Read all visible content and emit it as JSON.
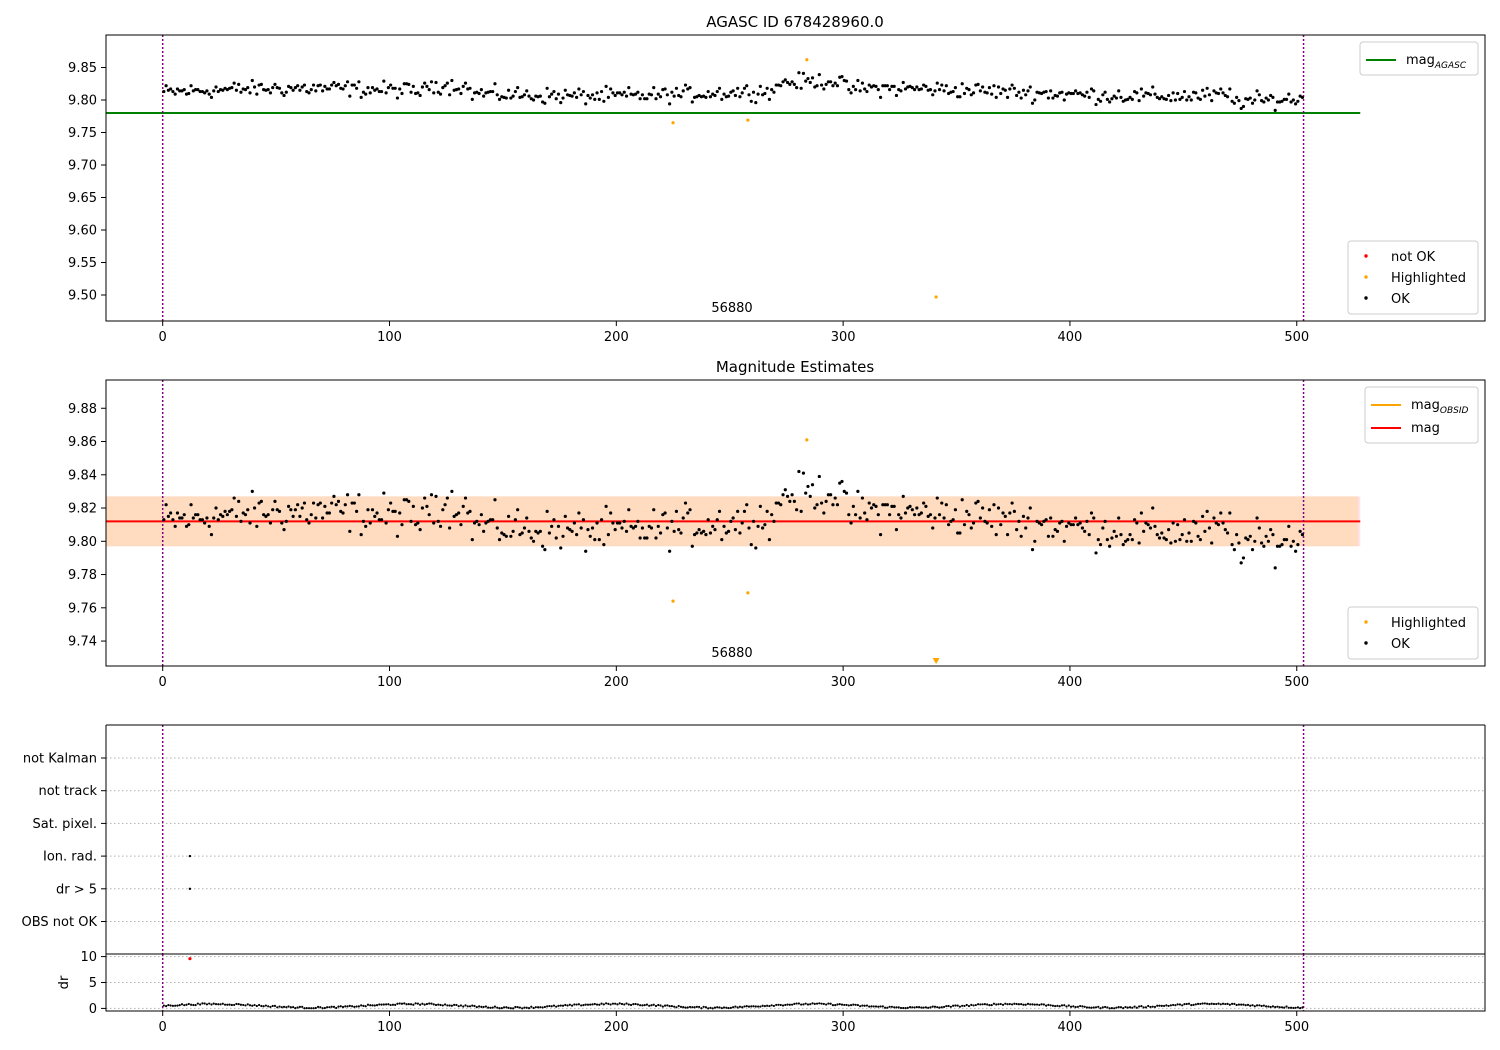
{
  "figure": {
    "top_title": "AGASC ID 678428960.0",
    "middle_title": "Magnitude Estimates"
  },
  "colors": {
    "ok": "#000000",
    "highlighted": "#ffa500",
    "not_ok": "#ff0000",
    "mag_agasc": "#008000",
    "mag_obsid": "#ffa500",
    "mag": "#ff0000",
    "band_outer": "#ffc0cb",
    "band_inner": "#ffdab9",
    "vline": "#800080",
    "grid": "#b0b0b0"
  },
  "chart_data": [
    {
      "type": "scatter",
      "title": "AGASC ID 678428960.0",
      "xlim": [
        -25,
        583
      ],
      "ylim": [
        9.46,
        9.9
      ],
      "xticks": [
        "0",
        "100",
        "200",
        "300",
        "400",
        "500"
      ],
      "yticks": [
        "9.50",
        "9.55",
        "9.60",
        "9.65",
        "9.70",
        "9.75",
        "9.80",
        "9.85"
      ],
      "hline": {
        "name": "mag_AGASC",
        "y": 9.78,
        "x": [
          -25,
          528
        ]
      },
      "vlines": [
        0,
        503
      ],
      "obsid_label": {
        "text": "56880",
        "x": 251
      },
      "legend_lines": [
        {
          "label": "mag",
          "sub": "AGASC",
          "color": "#008000"
        }
      ],
      "legend_points": [
        {
          "label": "not OK",
          "color": "#ff0000"
        },
        {
          "label": "Highlighted",
          "color": "#ffa500"
        },
        {
          "label": "OK",
          "color": "#000000"
        }
      ],
      "series": [
        {
          "name": "not OK",
          "x": [],
          "y": []
        },
        {
          "name": "Highlighted",
          "x": [
            225,
            258,
            284,
            341
          ],
          "y": [
            9.765,
            9.769,
            9.862,
            9.497
          ]
        }
      ]
    },
    {
      "type": "scatter",
      "title": "Magnitude Estimates",
      "xlim": [
        -25,
        583
      ],
      "ylim": [
        9.725,
        9.897
      ],
      "xticks": [
        "0",
        "100",
        "200",
        "300",
        "400",
        "500"
      ],
      "yticks": [
        "9.74",
        "9.76",
        "9.78",
        "9.80",
        "9.82",
        "9.84",
        "9.86",
        "9.88"
      ],
      "hline": {
        "name": "mag",
        "y": 9.812,
        "x": [
          -25,
          528
        ]
      },
      "band": {
        "y0": 9.797,
        "y1": 9.827,
        "x": [
          -25,
          528
        ]
      },
      "vlines": [
        0,
        503
      ],
      "obsid_label": {
        "text": "56880",
        "x": 251
      },
      "legend_lines": [
        {
          "label": "mag",
          "sub": "OBSID",
          "color": "#ffa500"
        },
        {
          "label": "mag",
          "sub": "",
          "color": "#ff0000"
        }
      ],
      "legend_points": [
        {
          "label": "Highlighted",
          "color": "#ffa500"
        },
        {
          "label": "OK",
          "color": "#000000"
        }
      ],
      "series": [
        {
          "name": "Highlighted",
          "x": [
            225,
            258,
            284
          ],
          "y": [
            9.764,
            9.769,
            9.861
          ]
        }
      ],
      "offscale_markers": [
        {
          "x": 341,
          "color": "#ffa500"
        }
      ]
    },
    {
      "type": "scatter",
      "title": "",
      "xlim": [
        -25,
        583
      ],
      "categories": [
        "not Kalman",
        "not track",
        "Sat. pixel.",
        "Ion. rad.",
        "dr > 5",
        "OBS not OK"
      ],
      "flags": [
        {
          "category": "Ion. rad.",
          "x": 12
        },
        {
          "category": "dr > 5",
          "x": 12
        }
      ],
      "vlines": [
        0,
        503
      ]
    },
    {
      "type": "scatter",
      "title": "",
      "ylabel": "dr",
      "xlim": [
        -25,
        583
      ],
      "ylim": [
        -0.5,
        10.5
      ],
      "xticks": [
        "0",
        "100",
        "200",
        "300",
        "400",
        "500"
      ],
      "yticks": [
        "0",
        "5",
        "10"
      ],
      "vlines": [
        0,
        503
      ],
      "highlight_points": [
        {
          "x": 12,
          "y": 9.6,
          "color": "#ff0000"
        }
      ]
    }
  ]
}
